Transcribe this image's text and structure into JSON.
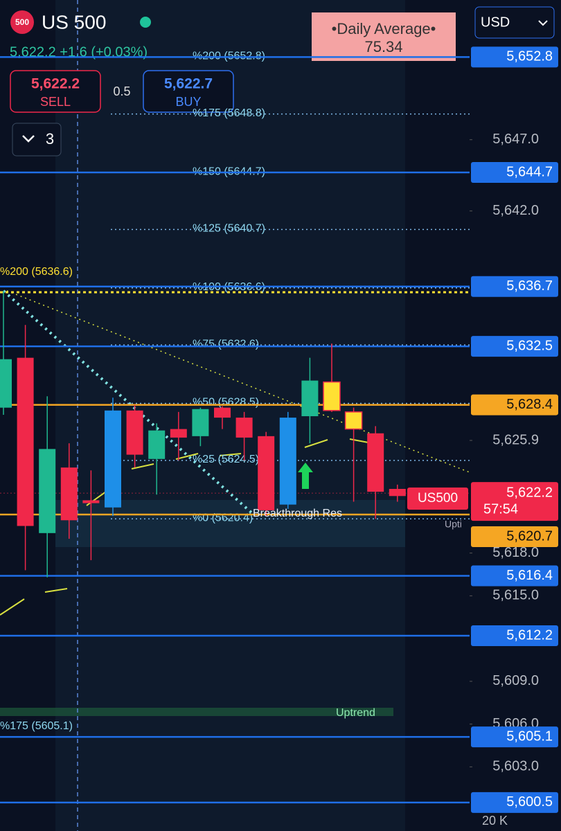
{
  "header": {
    "badge": "500",
    "symbol": "US 500",
    "quote": "5,622.2 +1.6 (+0.03%)",
    "currency": "USD",
    "sell_price": "5,622.2",
    "sell_label": "SELL",
    "spread": "0.5",
    "buy_price": "5,622.7",
    "buy_label": "BUY",
    "lots": "3",
    "daily_average_label": "•Daily Average•",
    "daily_average_value": "75.34"
  },
  "chart_data": {
    "type": "candlestick",
    "ylim": [
      5598.5,
      5656.8
    ],
    "yticks": [
      {
        "value": 5647,
        "label": "5,647.0"
      },
      {
        "value": 5642,
        "label": "5,642.0"
      },
      {
        "value": 5625.9,
        "label": "5,625.9"
      },
      {
        "value": 5618,
        "label": "5,618.0"
      },
      {
        "value": 5615,
        "label": "5,615.0"
      },
      {
        "value": 5609,
        "label": "5,609.0"
      },
      {
        "value": 5606,
        "label": "5,606.0"
      },
      {
        "value": 5603,
        "label": "5,603.0"
      }
    ],
    "levels": [
      {
        "value": 5652.8,
        "label": "5,652.8",
        "color": "#1f6fe8"
      },
      {
        "value": 5644.7,
        "label": "5,644.7",
        "color": "#1f6fe8"
      },
      {
        "value": 5636.7,
        "label": "5,636.7",
        "color": "#1f6fe8"
      },
      {
        "value": 5632.5,
        "label": "5,632.5",
        "color": "#1f6fe8"
      },
      {
        "value": 5628.4,
        "label": "5,628.4",
        "color": "#f5a623"
      },
      {
        "value": 5622.2,
        "label": "5,622.2",
        "color": "#f0284a"
      },
      {
        "value": 5620.7,
        "label": "5,620.7",
        "color": "#f5a623"
      },
      {
        "value": 5616.4,
        "label": "5,616.4",
        "color": "#1f6fe8"
      },
      {
        "value": 5612.2,
        "label": "5,612.2",
        "color": "#1f6fe8"
      },
      {
        "value": 5605.1,
        "label": "5,605.1",
        "color": "#1f6fe8"
      },
      {
        "value": 5600.5,
        "label": "5,600.5",
        "color": "#1f6fe8"
      }
    ],
    "fib_labels": [
      {
        "value": 5652.8,
        "label": "%200  (5652.8)"
      },
      {
        "value": 5648.8,
        "label": "%175  (5648.8)"
      },
      {
        "value": 5644.7,
        "label": "%150  (5644.7)"
      },
      {
        "value": 5640.7,
        "label": "%125  (5640.7)"
      },
      {
        "value": 5636.6,
        "label": "%100  (5636.6)"
      },
      {
        "value": 5632.6,
        "label": "%75  (5632.6)"
      },
      {
        "value": 5628.5,
        "label": "%50  (5628.5)"
      },
      {
        "value": 5624.5,
        "label": "%25  (5624.5)"
      },
      {
        "value": 5620.4,
        "label": "%0  (5620.4)"
      }
    ],
    "annotations": {
      "left_fib_top": "%200  (5636.6)",
      "left_fib_bottom": "%175  (5605.1)",
      "breakthrough": "Breakthrough Res",
      "uptrend": "Uptrend",
      "uptrend_cut": "Upti",
      "price_tag": "US500",
      "countdown": "57:54",
      "volume": "20 K"
    },
    "candles": [
      {
        "open": 5628.2,
        "high": 5636.4,
        "low": 5627.7,
        "close": 5631.6,
        "color": "#1fb890"
      },
      {
        "open": 5631.7,
        "high": 5634.0,
        "low": 5616.8,
        "close": 5619.9,
        "color": "#f0284a"
      },
      {
        "open": 5619.4,
        "high": 5629.0,
        "low": 5616.3,
        "close": 5625.3,
        "color": "#1fb890"
      },
      {
        "open": 5624.0,
        "high": 5625.7,
        "low": 5619.0,
        "close": 5620.3,
        "color": "#f0284a"
      },
      {
        "open": 5621.7,
        "high": 5623.8,
        "low": 5617.5,
        "close": 5621.5,
        "color": "#f0284a"
      },
      {
        "open": 5621.2,
        "high": 5628.9,
        "low": 5620.6,
        "close": 5628.0,
        "color": "#1e8fe8"
      },
      {
        "open": 5628.0,
        "high": 5628.4,
        "low": 5624.0,
        "close": 5624.9,
        "color": "#f0284a"
      },
      {
        "open": 5624.6,
        "high": 5627.1,
        "low": 5622.1,
        "close": 5626.6,
        "color": "#1fb890"
      },
      {
        "open": 5626.7,
        "high": 5627.9,
        "low": 5624.5,
        "close": 5626.1,
        "color": "#f0284a"
      },
      {
        "open": 5626.2,
        "high": 5628.2,
        "low": 5625.5,
        "close": 5628.1,
        "color": "#1fb890"
      },
      {
        "open": 5628.2,
        "high": 5628.3,
        "low": 5626.7,
        "close": 5627.5,
        "color": "#f0284a"
      },
      {
        "open": 5627.5,
        "high": 5627.9,
        "low": 5624.5,
        "close": 5626.1,
        "color": "#f0284a"
      },
      {
        "open": 5626.2,
        "high": 5626.5,
        "low": 5620.6,
        "close": 5621.0,
        "color": "#f0284a"
      },
      {
        "open": 5621.4,
        "high": 5627.9,
        "low": 5621.1,
        "close": 5627.5,
        "color": "#1e8fe8"
      },
      {
        "open": 5627.6,
        "high": 5631.7,
        "low": 5625.7,
        "close": 5630.1,
        "color": "#1fb890"
      },
      {
        "open": 5630.0,
        "high": 5632.7,
        "low": 5627.9,
        "close": 5628.0,
        "color": "#ffe033"
      },
      {
        "open": 5627.9,
        "high": 5628.2,
        "low": 5621.6,
        "close": 5626.7,
        "color": "#ffe033"
      },
      {
        "open": 5626.4,
        "high": 5626.9,
        "low": 5620.4,
        "close": 5622.3,
        "color": "#f0284a"
      },
      {
        "open": 5622.5,
        "high": 5622.8,
        "low": 5621.6,
        "close": 5622.0,
        "color": "#f0284a"
      }
    ]
  }
}
